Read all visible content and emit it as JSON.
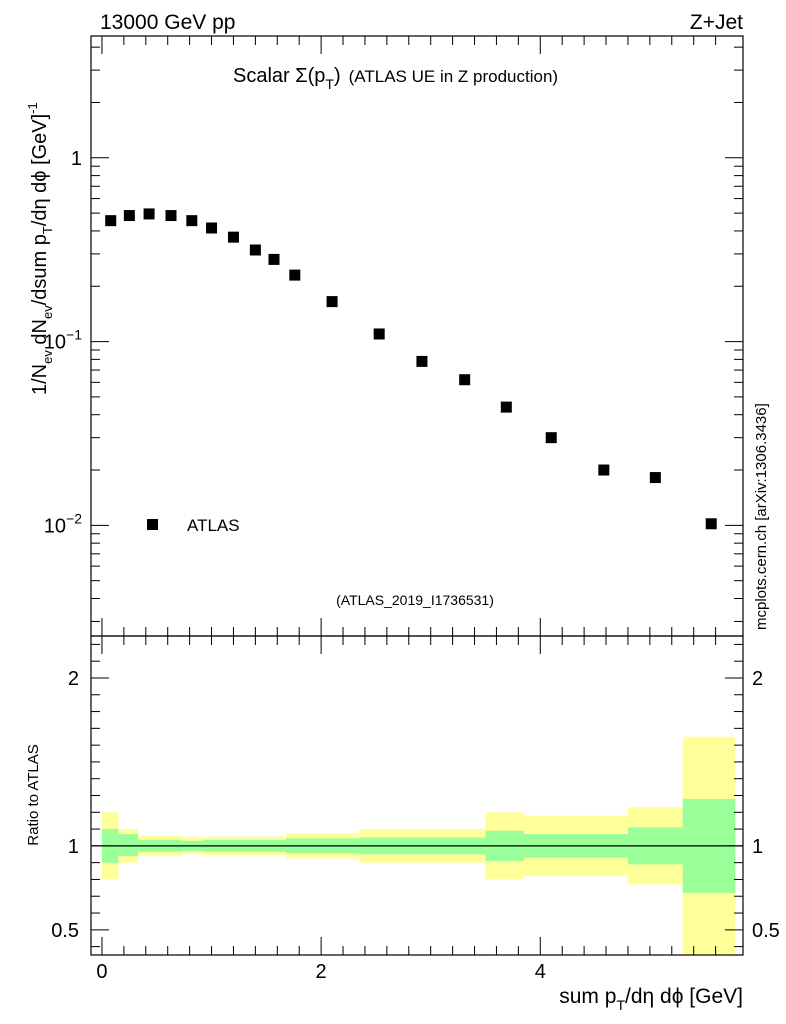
{
  "header": {
    "left": "13000 GeV pp",
    "right": "Z+Jet"
  },
  "side_label": "mcplots.cern.ch [arXiv:1306.3436]",
  "chart_data": {
    "type": "scatter",
    "title_main": "Scalar Σ(p",
    "title_sub": "T",
    "title_tail": ")",
    "title_note": "(ATLAS UE in Z production)",
    "analysis_id": "(ATLAS_2019_I1736531)",
    "ylabel_main": "1/N",
    "ylabel_full": "1/N_ev dN_ev/dsum p_T/dη dϕ [GeV]^-1",
    "xlabel_main": "sum p",
    "xlabel_sub": "T",
    "xlabel_tail": "/dη dϕ [GeV]",
    "legend": "ATLAS",
    "main_yscale": "log",
    "main_ylim": [
      0.0025,
      4.6
    ],
    "main_yticks": [
      {
        "value": 1,
        "label": "1",
        "exp": ""
      },
      {
        "value": 0.1,
        "label": "10",
        "exp": "−1"
      },
      {
        "value": 0.01,
        "label": "10",
        "exp": "−2"
      }
    ],
    "xlim": [
      -0.1,
      5.85
    ],
    "xticks": [
      0,
      2,
      4
    ],
    "points": [
      {
        "x": 0.08,
        "y": 0.455
      },
      {
        "x": 0.25,
        "y": 0.485
      },
      {
        "x": 0.43,
        "y": 0.495
      },
      {
        "x": 0.63,
        "y": 0.485
      },
      {
        "x": 0.82,
        "y": 0.455
      },
      {
        "x": 1.0,
        "y": 0.415
      },
      {
        "x": 1.2,
        "y": 0.37
      },
      {
        "x": 1.4,
        "y": 0.315
      },
      {
        "x": 1.57,
        "y": 0.28
      },
      {
        "x": 1.76,
        "y": 0.23
      },
      {
        "x": 2.1,
        "y": 0.165
      },
      {
        "x": 2.53,
        "y": 0.11
      },
      {
        "x": 2.92,
        "y": 0.078
      },
      {
        "x": 3.31,
        "y": 0.062
      },
      {
        "x": 3.69,
        "y": 0.044
      },
      {
        "x": 4.1,
        "y": 0.03
      },
      {
        "x": 4.58,
        "y": 0.02
      },
      {
        "x": 5.05,
        "y": 0.0182
      },
      {
        "x": 5.56,
        "y": 0.0102
      }
    ],
    "ratio": {
      "ylabel": "Ratio to ATLAS",
      "ylim": [
        0.35,
        2.25
      ],
      "yticks": [
        0.5,
        1,
        2
      ],
      "bins": [
        {
          "lo": 0.0,
          "hi": 0.15,
          "stat_lo": 0.9,
          "stat_hi": 1.1,
          "tot_lo": 0.8,
          "tot_hi": 1.2
        },
        {
          "lo": 0.15,
          "hi": 0.33,
          "stat_lo": 0.94,
          "stat_hi": 1.07,
          "tot_lo": 0.9,
          "tot_hi": 1.1
        },
        {
          "lo": 0.33,
          "hi": 0.73,
          "stat_lo": 0.965,
          "stat_hi": 1.035,
          "tot_lo": 0.94,
          "tot_hi": 1.06
        },
        {
          "lo": 0.73,
          "hi": 0.92,
          "stat_lo": 0.97,
          "stat_hi": 1.03,
          "tot_lo": 0.95,
          "tot_hi": 1.05
        },
        {
          "lo": 0.92,
          "hi": 1.68,
          "stat_lo": 0.965,
          "stat_hi": 1.035,
          "tot_lo": 0.945,
          "tot_hi": 1.055
        },
        {
          "lo": 1.68,
          "hi": 2.35,
          "stat_lo": 0.955,
          "stat_hi": 1.045,
          "tot_lo": 0.925,
          "tot_hi": 1.075
        },
        {
          "lo": 2.35,
          "hi": 3.5,
          "stat_lo": 0.95,
          "stat_hi": 1.05,
          "tot_lo": 0.9,
          "tot_hi": 1.1
        },
        {
          "lo": 3.5,
          "hi": 3.85,
          "stat_lo": 0.91,
          "stat_hi": 1.09,
          "tot_lo": 0.8,
          "tot_hi": 1.2
        },
        {
          "lo": 3.85,
          "hi": 4.8,
          "stat_lo": 0.93,
          "stat_hi": 1.07,
          "tot_lo": 0.82,
          "tot_hi": 1.18
        },
        {
          "lo": 4.8,
          "hi": 5.3,
          "stat_lo": 0.89,
          "stat_hi": 1.11,
          "tot_lo": 0.77,
          "tot_hi": 1.23
        },
        {
          "lo": 5.3,
          "hi": 5.78,
          "stat_lo": 0.72,
          "stat_hi": 1.28,
          "tot_lo": 0.35,
          "tot_hi": 1.65
        }
      ]
    },
    "colors": {
      "total_band": "#ffff99",
      "stat_band": "#99ff99",
      "marker": "#000000",
      "annotation": "#808080"
    }
  }
}
